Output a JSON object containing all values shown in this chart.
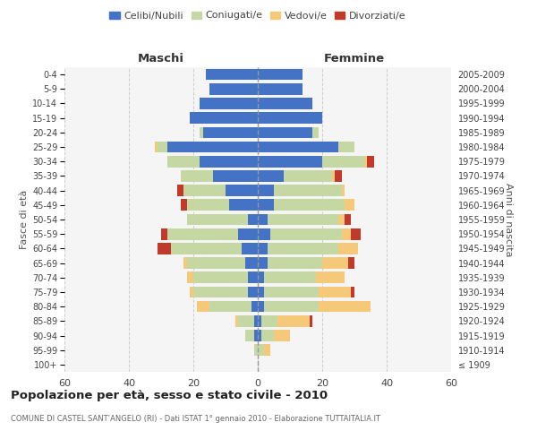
{
  "age_groups": [
    "100+",
    "95-99",
    "90-94",
    "85-89",
    "80-84",
    "75-79",
    "70-74",
    "65-69",
    "60-64",
    "55-59",
    "50-54",
    "45-49",
    "40-44",
    "35-39",
    "30-34",
    "25-29",
    "20-24",
    "15-19",
    "10-14",
    "5-9",
    "0-4"
  ],
  "birth_years": [
    "≤ 1909",
    "1910-1914",
    "1915-1919",
    "1920-1924",
    "1925-1929",
    "1930-1934",
    "1935-1939",
    "1940-1944",
    "1945-1949",
    "1950-1954",
    "1955-1959",
    "1960-1964",
    "1965-1969",
    "1970-1974",
    "1975-1979",
    "1980-1984",
    "1985-1989",
    "1990-1994",
    "1995-1999",
    "2000-2004",
    "2005-2009"
  ],
  "maschi": {
    "celibi": [
      0,
      0,
      1,
      1,
      2,
      3,
      3,
      4,
      5,
      6,
      3,
      9,
      10,
      14,
      18,
      28,
      17,
      21,
      18,
      15,
      16
    ],
    "coniugati": [
      0,
      1,
      3,
      5,
      13,
      17,
      17,
      18,
      22,
      22,
      19,
      13,
      13,
      10,
      10,
      3,
      1,
      0,
      0,
      0,
      0
    ],
    "vedovi": [
      0,
      0,
      0,
      1,
      4,
      1,
      2,
      1,
      0,
      0,
      0,
      0,
      0,
      0,
      0,
      1,
      0,
      0,
      0,
      0,
      0
    ],
    "divorziati": [
      0,
      0,
      0,
      0,
      0,
      0,
      0,
      0,
      4,
      2,
      0,
      2,
      2,
      0,
      0,
      0,
      0,
      0,
      0,
      0,
      0
    ]
  },
  "femmine": {
    "nubili": [
      0,
      0,
      1,
      1,
      2,
      2,
      2,
      3,
      3,
      4,
      3,
      5,
      5,
      8,
      20,
      25,
      17,
      20,
      17,
      14,
      14
    ],
    "coniugate": [
      0,
      2,
      4,
      5,
      17,
      17,
      16,
      17,
      22,
      22,
      22,
      22,
      21,
      15,
      13,
      5,
      2,
      0,
      0,
      0,
      0
    ],
    "vedove": [
      0,
      2,
      5,
      10,
      16,
      10,
      9,
      8,
      6,
      3,
      2,
      3,
      1,
      1,
      1,
      0,
      0,
      0,
      0,
      0,
      0
    ],
    "divorziate": [
      0,
      0,
      0,
      1,
      0,
      1,
      0,
      2,
      0,
      3,
      2,
      0,
      0,
      2,
      2,
      0,
      0,
      0,
      0,
      0,
      0
    ]
  },
  "colors": {
    "celibi": "#4472C4",
    "coniugati": "#c5d8a4",
    "vedovi": "#f5c87a",
    "divorziati": "#c0392b"
  },
  "xlim": 60,
  "title_main": "Popolazione per età, sesso e stato civile - 2010",
  "title_sub": "COMUNE DI CASTEL SANT’ANGELO (RI) - Dati ISTAT 1° gennaio 2010 - Elaborazione TUTTAITALIA.IT",
  "ylabel_left": "Fasce di età",
  "ylabel_right": "Anni di nascita",
  "label_celibi": "Celibi/Nubili",
  "label_coniugati": "Coniugati/e",
  "label_vedovi": "Vedovi/e",
  "label_divorziati": "Divorziati/e",
  "maschi_label": "Maschi",
  "femmine_label": "Femmine"
}
